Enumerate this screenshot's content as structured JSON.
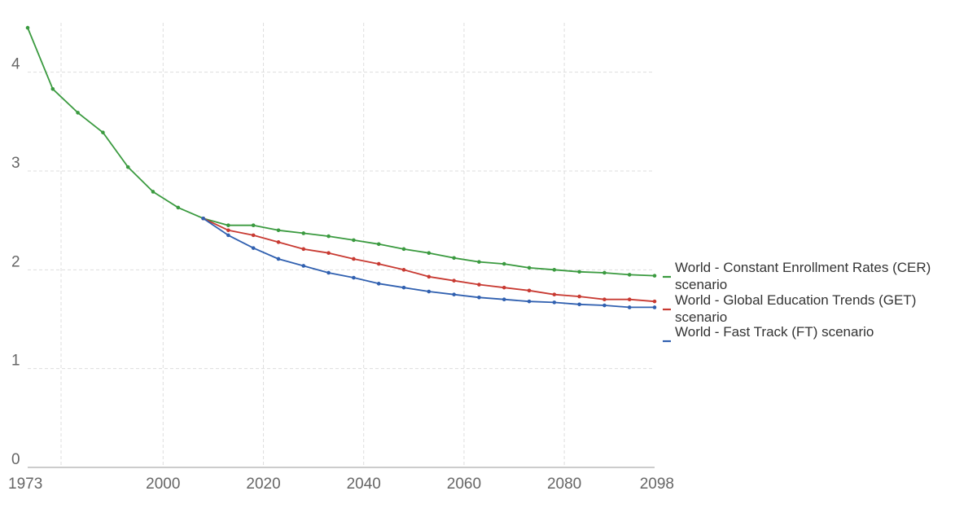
{
  "chart_data": {
    "type": "line",
    "xlim": [
      1973,
      2098
    ],
    "ylim": [
      0,
      4.5
    ],
    "x_ticks": [
      1973,
      2000,
      2020,
      2040,
      2060,
      2080,
      2098
    ],
    "y_ticks": [
      0,
      1,
      2,
      3,
      4
    ],
    "grid": true,
    "legend_position": "right",
    "series": [
      {
        "name": "World - Constant Enrollment Rates (CER) scenario",
        "color": "#3a9a3f",
        "points": [
          [
            1973,
            4.45
          ],
          [
            1978,
            3.83
          ],
          [
            1983,
            3.59
          ],
          [
            1988,
            3.39
          ],
          [
            1993,
            3.04
          ],
          [
            1998,
            2.79
          ],
          [
            2003,
            2.63
          ],
          [
            2008,
            2.52
          ],
          [
            2013,
            2.45
          ],
          [
            2018,
            2.45
          ],
          [
            2023,
            2.4
          ],
          [
            2028,
            2.37
          ],
          [
            2033,
            2.34
          ],
          [
            2038,
            2.3
          ],
          [
            2043,
            2.26
          ],
          [
            2048,
            2.21
          ],
          [
            2053,
            2.17
          ],
          [
            2058,
            2.12
          ],
          [
            2063,
            2.08
          ],
          [
            2068,
            2.06
          ],
          [
            2073,
            2.02
          ],
          [
            2078,
            2.0
          ],
          [
            2083,
            1.98
          ],
          [
            2088,
            1.97
          ],
          [
            2093,
            1.95
          ],
          [
            2098,
            1.94
          ]
        ]
      },
      {
        "name": "World - Global Education Trends (GET) scenario",
        "color": "#c83a32",
        "points": [
          [
            2008,
            2.52
          ],
          [
            2013,
            2.4
          ],
          [
            2018,
            2.35
          ],
          [
            2023,
            2.28
          ],
          [
            2028,
            2.21
          ],
          [
            2033,
            2.17
          ],
          [
            2038,
            2.11
          ],
          [
            2043,
            2.06
          ],
          [
            2048,
            2.0
          ],
          [
            2053,
            1.93
          ],
          [
            2058,
            1.89
          ],
          [
            2063,
            1.85
          ],
          [
            2068,
            1.82
          ],
          [
            2073,
            1.79
          ],
          [
            2078,
            1.75
          ],
          [
            2083,
            1.73
          ],
          [
            2088,
            1.7
          ],
          [
            2093,
            1.7
          ],
          [
            2098,
            1.68
          ]
        ]
      },
      {
        "name": "World - Fast Track (FT) scenario",
        "color": "#3060b0",
        "points": [
          [
            2008,
            2.52
          ],
          [
            2013,
            2.35
          ],
          [
            2018,
            2.22
          ],
          [
            2023,
            2.11
          ],
          [
            2028,
            2.04
          ],
          [
            2033,
            1.97
          ],
          [
            2038,
            1.92
          ],
          [
            2043,
            1.86
          ],
          [
            2048,
            1.82
          ],
          [
            2053,
            1.78
          ],
          [
            2058,
            1.75
          ],
          [
            2063,
            1.72
          ],
          [
            2068,
            1.7
          ],
          [
            2073,
            1.68
          ],
          [
            2078,
            1.67
          ],
          [
            2083,
            1.65
          ],
          [
            2088,
            1.64
          ],
          [
            2093,
            1.62
          ],
          [
            2098,
            1.62
          ]
        ]
      }
    ]
  }
}
